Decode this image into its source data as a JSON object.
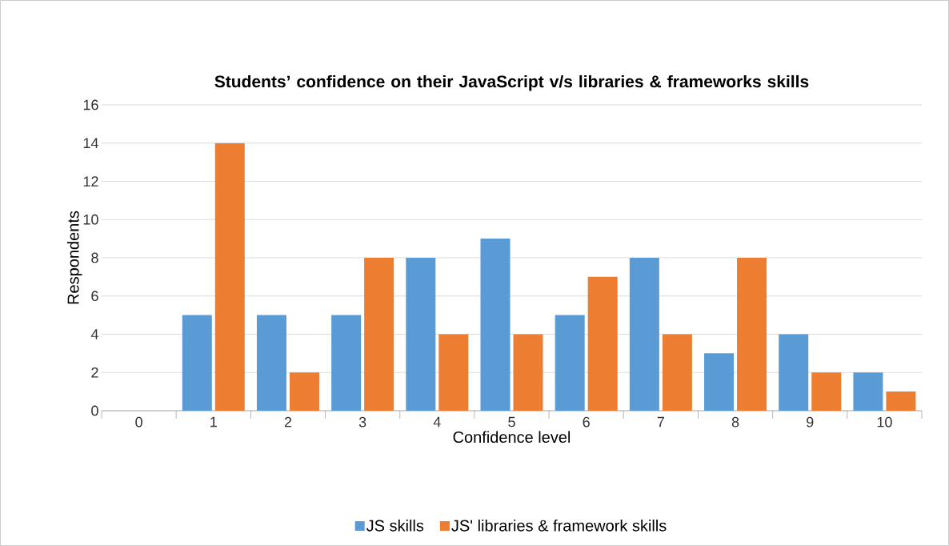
{
  "chart_data": {
    "type": "bar",
    "title": "Students’ confidence on their JavaScript v/s libraries & frameworks skills",
    "xlabel": "Confidence level",
    "ylabel": "Respondents",
    "categories": [
      "0",
      "1",
      "2",
      "3",
      "4",
      "5",
      "6",
      "7",
      "8",
      "9",
      "10"
    ],
    "series": [
      {
        "name": "JS skills",
        "color": "#5b9bd5",
        "values": [
          0,
          5,
          5,
          5,
          8,
          9,
          5,
          8,
          3,
          4,
          2
        ]
      },
      {
        "name": "JS' libraries & framework skills",
        "color": "#ed7d31",
        "values": [
          0,
          14,
          2,
          8,
          4,
          4,
          7,
          4,
          8,
          2,
          1
        ]
      }
    ],
    "ylim": [
      0,
      16
    ],
    "yticks": [
      0,
      2,
      4,
      6,
      8,
      10,
      12,
      14,
      16
    ],
    "grid": "y",
    "legend": "bottom"
  }
}
